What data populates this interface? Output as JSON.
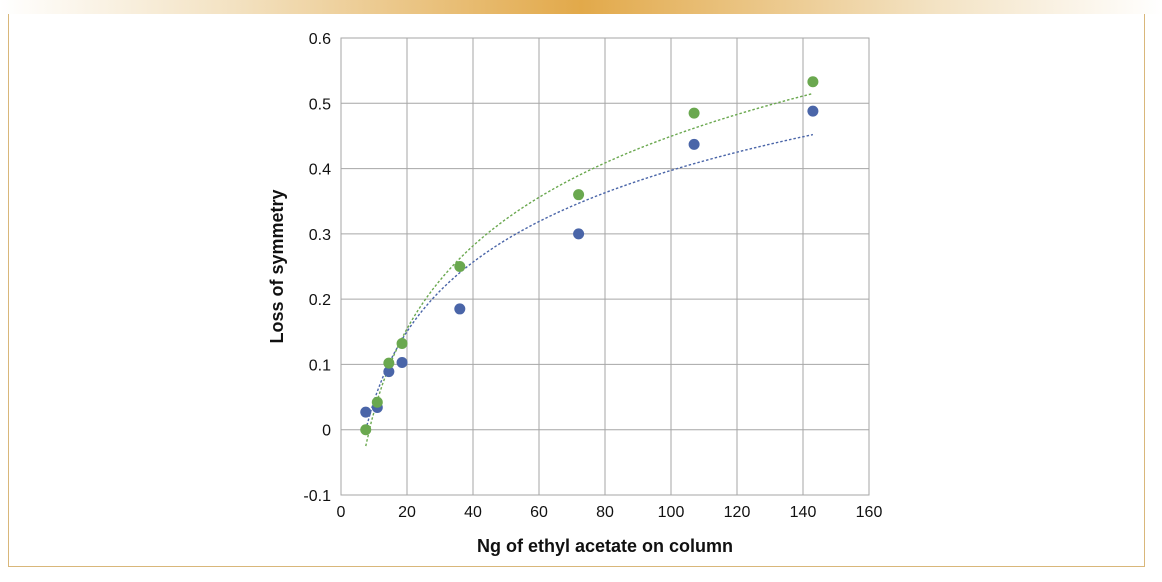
{
  "chart_data": {
    "type": "scatter",
    "title": "",
    "xlabel": "Ng of ethyl acetate on column",
    "ylabel": "Loss of symmetry",
    "xlim": [
      0,
      160
    ],
    "ylim": [
      -0.1,
      0.6
    ],
    "xticks": [
      0,
      20,
      40,
      60,
      80,
      100,
      120,
      140,
      160
    ],
    "yticks": [
      -0.1,
      0,
      0.1,
      0.2,
      0.3,
      0.4,
      0.5,
      0.6
    ],
    "xtick_labels": [
      "0",
      "20",
      "40",
      "60",
      "80",
      "100",
      "120",
      "140",
      "160"
    ],
    "ytick_labels": [
      "-0.1",
      "0",
      "0.1",
      "0.2",
      "0.3",
      "0.4",
      "0.5",
      "0.6"
    ],
    "grid": true,
    "legend": "none",
    "series": [
      {
        "color": "#4a65a8",
        "points": [
          [
            7.5,
            0.027
          ],
          [
            11,
            0.034
          ],
          [
            14.5,
            0.089
          ],
          [
            18.5,
            0.103
          ],
          [
            36,
            0.185
          ],
          [
            72,
            0.3
          ],
          [
            107,
            0.437
          ],
          [
            143,
            0.488
          ]
        ],
        "trendline": {
          "type": "logarithmic",
          "style": "dotted",
          "x_range": [
            7.5,
            143
          ],
          "y_start": 0.0,
          "y_end": 0.452
        }
      },
      {
        "color": "#6aa84f",
        "points": [
          [
            7.5,
            0.0
          ],
          [
            11,
            0.042
          ],
          [
            14.5,
            0.102
          ],
          [
            18.5,
            0.132
          ],
          [
            36,
            0.25
          ],
          [
            72,
            0.36
          ],
          [
            107,
            0.485
          ],
          [
            143,
            0.533
          ]
        ],
        "trendline": {
          "type": "logarithmic",
          "style": "dotted",
          "x_range": [
            7.5,
            143
          ],
          "y_start": -0.025,
          "y_end": 0.515
        }
      }
    ]
  }
}
